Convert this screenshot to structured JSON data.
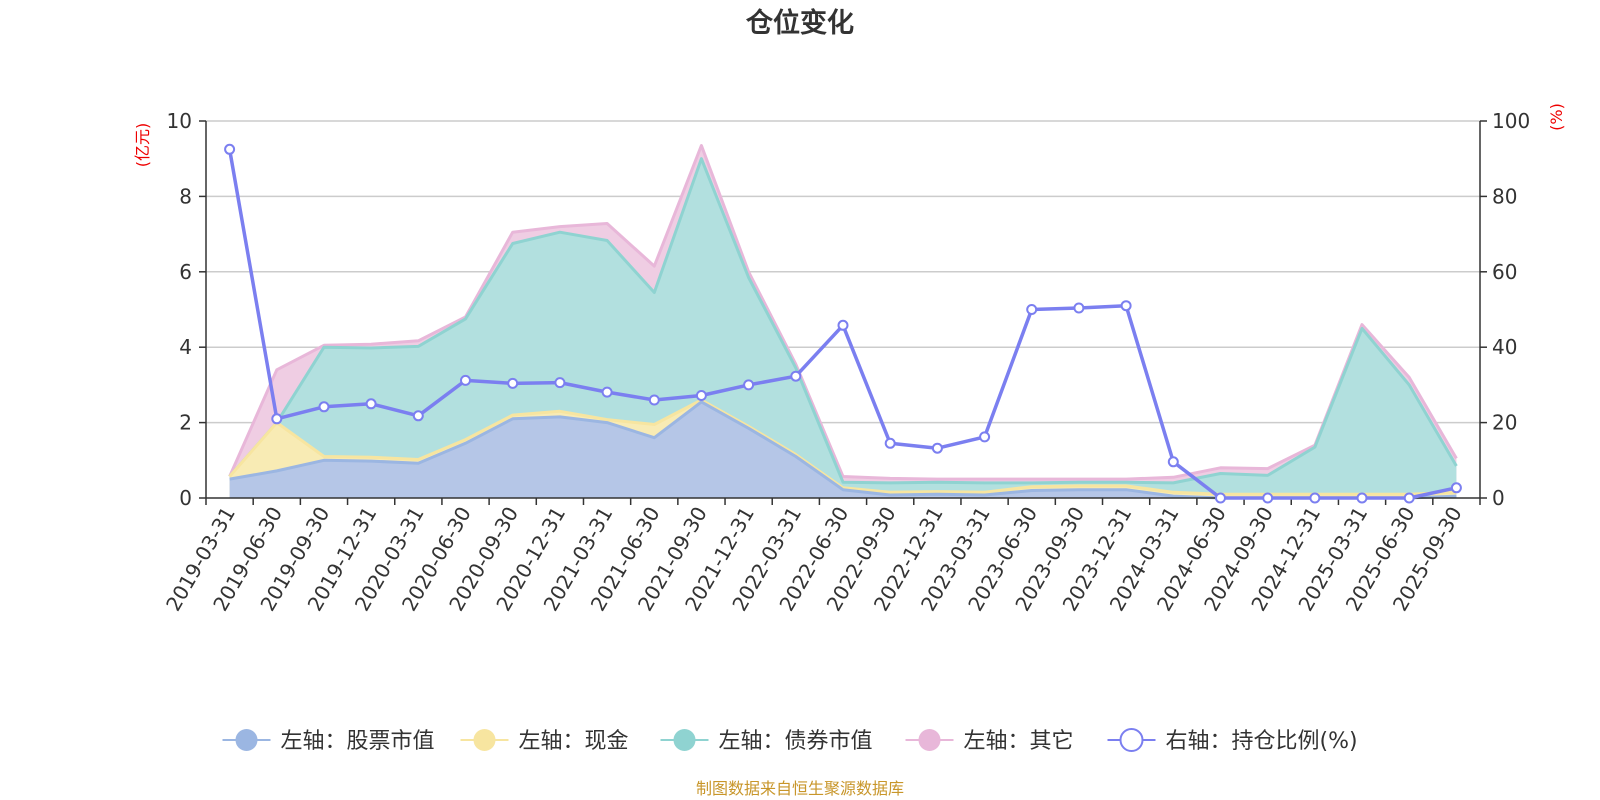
{
  "chart_data": {
    "type": "area",
    "title": "仓位变化",
    "left_unit": "(亿元)",
    "right_unit": "(%)",
    "left_ylim": [
      0,
      10
    ],
    "left_ticks": [
      0,
      2,
      4,
      6,
      8,
      10
    ],
    "right_ylim": [
      0,
      100
    ],
    "right_ticks": [
      0,
      20,
      40,
      60,
      80,
      100
    ],
    "categories": [
      "2019-03-31",
      "2019-06-30",
      "2019-09-30",
      "2019-12-31",
      "2020-03-31",
      "2020-06-30",
      "2020-09-30",
      "2020-12-31",
      "2021-03-31",
      "2021-06-30",
      "2021-09-30",
      "2021-12-31",
      "2022-03-31",
      "2022-06-30",
      "2022-09-30",
      "2022-12-31",
      "2023-03-31",
      "2023-06-30",
      "2023-09-30",
      "2023-12-31",
      "2024-03-31",
      "2024-06-30",
      "2024-09-30",
      "2024-12-31",
      "2025-03-31",
      "2025-06-30",
      "2025-09-30"
    ],
    "series": [
      {
        "name": "左轴：股票市值",
        "axis": "left",
        "kind": "stacked-area",
        "color": "#9bb6e2",
        "fill": "#b5c6e7",
        "values": [
          0.5,
          0.72,
          1.0,
          0.98,
          0.92,
          1.45,
          2.1,
          2.15,
          2.0,
          1.6,
          2.55,
          1.85,
          1.1,
          0.22,
          0.08,
          0.1,
          0.08,
          0.2,
          0.22,
          0.22,
          0.05,
          0.0,
          0.0,
          0.0,
          0.0,
          0.0,
          0.05
        ]
      },
      {
        "name": "左轴：现金",
        "axis": "left",
        "kind": "stacked-area",
        "color": "#f7e5a0",
        "fill": "#f8ebb4",
        "values": [
          0.07,
          1.28,
          0.1,
          0.1,
          0.1,
          0.1,
          0.1,
          0.15,
          0.08,
          0.35,
          0.05,
          0.05,
          0.05,
          0.05,
          0.07,
          0.07,
          0.07,
          0.1,
          0.1,
          0.1,
          0.1,
          0.1,
          0.1,
          0.1,
          0.1,
          0.1,
          0.1
        ]
      },
      {
        "name": "左轴：债券市值",
        "axis": "left",
        "kind": "stacked-area",
        "color": "#8fd3d1",
        "fill": "#b2e0df",
        "values": [
          0.0,
          0.0,
          2.9,
          2.9,
          3.0,
          3.2,
          4.55,
          4.75,
          4.75,
          3.5,
          6.4,
          3.95,
          2.3,
          0.15,
          0.25,
          0.25,
          0.25,
          0.1,
          0.1,
          0.1,
          0.25,
          0.55,
          0.5,
          1.25,
          4.4,
          2.9,
          0.7
        ]
      },
      {
        "name": "左轴：其它",
        "axis": "left",
        "kind": "stacked-area",
        "color": "#e8b7d9",
        "fill": "#efcde3",
        "values": [
          0.0,
          1.4,
          0.05,
          0.1,
          0.15,
          0.05,
          0.3,
          0.15,
          0.45,
          0.7,
          0.35,
          0.15,
          0.1,
          0.15,
          0.12,
          0.08,
          0.1,
          0.1,
          0.08,
          0.08,
          0.15,
          0.15,
          0.18,
          0.05,
          0.1,
          0.2,
          0.2
        ]
      },
      {
        "name": "右轴：持仓比例(%)",
        "axis": "right",
        "kind": "line",
        "color": "#7b7ff0",
        "values": [
          92.5,
          21,
          24.2,
          25,
          21.8,
          31.2,
          30.4,
          30.6,
          28.1,
          26,
          27.2,
          30,
          32.3,
          45.8,
          14.5,
          13.2,
          16.2,
          50,
          50.4,
          51,
          9.6,
          0,
          0,
          0,
          0,
          0,
          2.7
        ]
      }
    ],
    "legend_position": "bottom",
    "grid": "horizontal"
  },
  "footer": {
    "source": "制图数据来自恒生聚源数据库"
  }
}
